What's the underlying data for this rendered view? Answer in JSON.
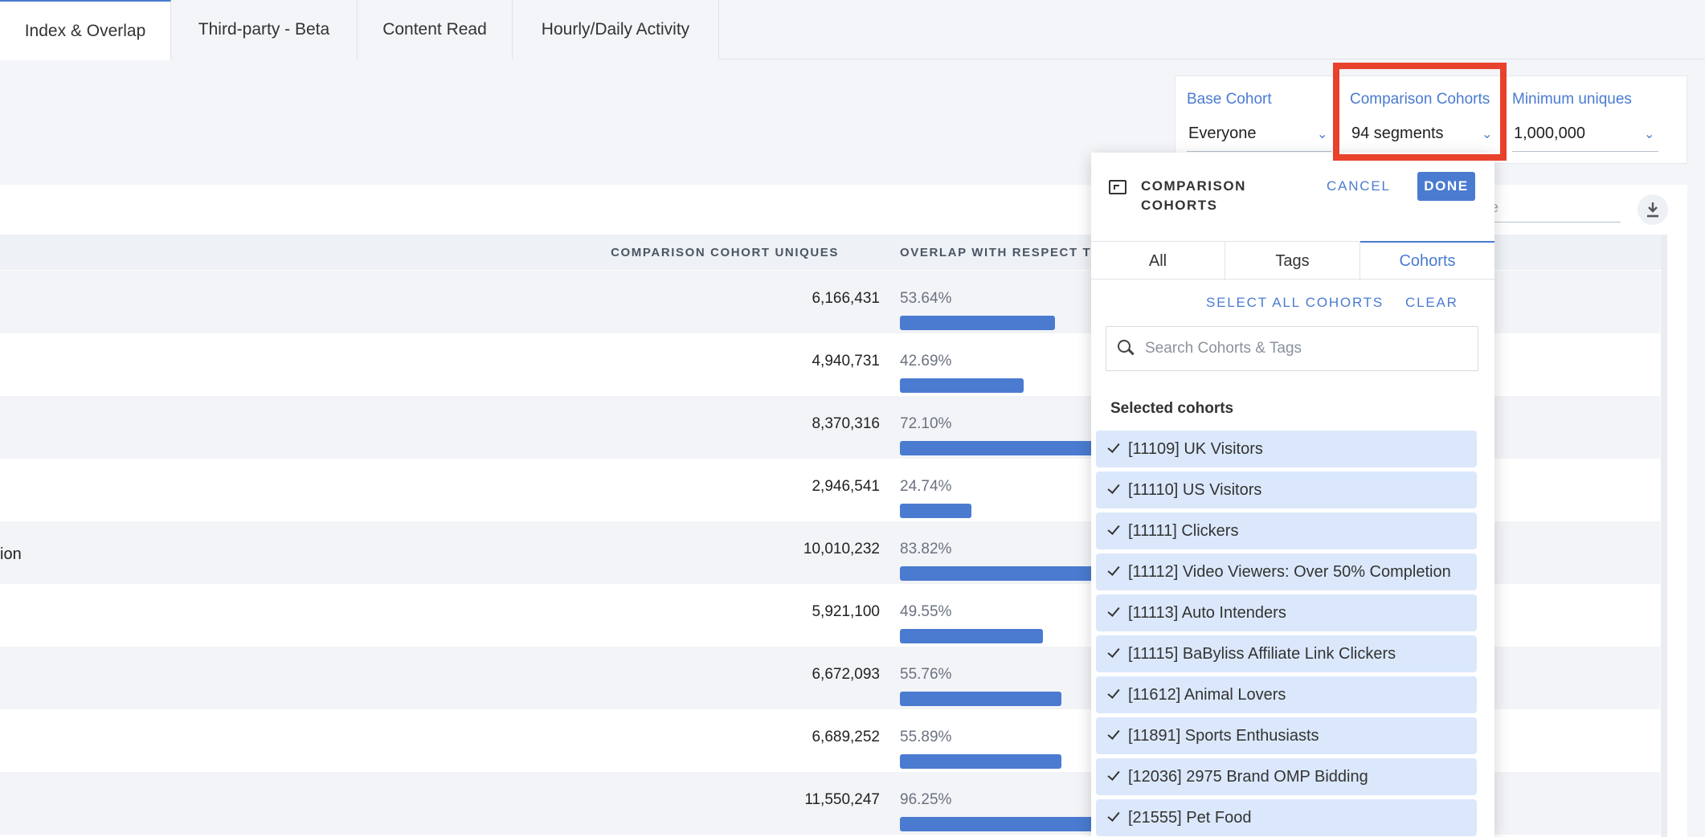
{
  "tabs": [
    {
      "label": "Index & Overlap",
      "active": true
    },
    {
      "label": "Third-party - Beta",
      "active": false
    },
    {
      "label": "Content Read",
      "active": false
    },
    {
      "label": "Hourly/Daily Activity",
      "active": false
    }
  ],
  "filters": {
    "base_cohort": {
      "label": "Base Cohort",
      "value": "Everyone"
    },
    "comparison_cohorts": {
      "label": "Comparison Cohorts",
      "value": "94 segments"
    },
    "minimum_uniques": {
      "label": "Minimum uniques",
      "value": "1,000,000"
    }
  },
  "table": {
    "search_placeholder_fragment": "e",
    "headers": {
      "uniques": "COMPARISON COHORT UNIQUES",
      "overlap": "OVERLAP WITH RESPECT TO C"
    },
    "rows": [
      {
        "name": "",
        "uniques": "6,166,431",
        "overlap": "53.64%",
        "overlap_value": 53.64
      },
      {
        "name": "",
        "uniques": "4,940,731",
        "overlap": "42.69%",
        "overlap_value": 42.69
      },
      {
        "name": "",
        "uniques": "8,370,316",
        "overlap": "72.10%",
        "overlap_value": 72.1
      },
      {
        "name": "",
        "uniques": "2,946,541",
        "overlap": "24.74%",
        "overlap_value": 24.74
      },
      {
        "name": "ion",
        "uniques": "10,010,232",
        "overlap": "83.82%",
        "overlap_value": 83.82
      },
      {
        "name": "",
        "uniques": "5,921,100",
        "overlap": "49.55%",
        "overlap_value": 49.55
      },
      {
        "name": "",
        "uniques": "6,672,093",
        "overlap": "55.76%",
        "overlap_value": 55.76
      },
      {
        "name": "",
        "uniques": "6,689,252",
        "overlap": "55.89%",
        "overlap_value": 55.89
      },
      {
        "name": "",
        "uniques": "11,550,247",
        "overlap": "96.25%",
        "overlap_value": 96.25
      }
    ]
  },
  "popup": {
    "title": "COMPARISON COHORTS",
    "cancel": "CANCEL",
    "done": "DONE",
    "tabs": [
      "All",
      "Tags",
      "Cohorts"
    ],
    "active_tab": "Cohorts",
    "select_all": "SELECT ALL COHORTS",
    "clear": "CLEAR",
    "search_placeholder": "Search Cohorts & Tags",
    "selected_heading": "Selected cohorts",
    "cohorts": [
      "[11109] UK Visitors",
      "[11110] US Visitors",
      "[11111] Clickers",
      "[11112] Video Viewers: Over 50% Completion",
      "[11113] Auto Intenders",
      "[11115] BaByliss Affiliate Link Clickers",
      "[11612] Animal Lovers",
      "[11891] Sports Enthusiasts",
      "[12036] 2975 Brand OMP Bidding",
      "[21555] Pet Food"
    ]
  },
  "colors": {
    "accent": "#4a7bd0",
    "highlight": "#e8412c",
    "selected_bg": "#dbe8fb"
  }
}
